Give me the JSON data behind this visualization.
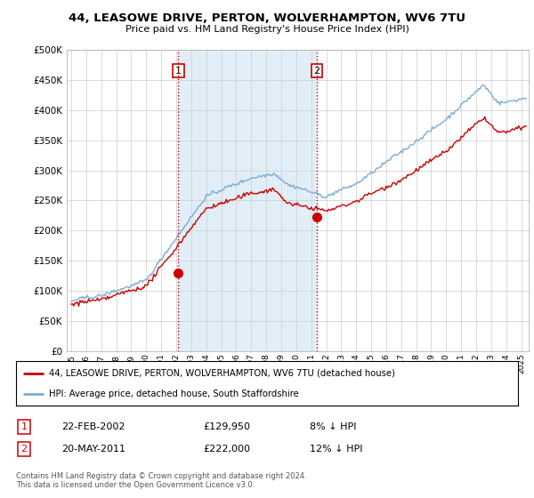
{
  "title": "44, LEASOWE DRIVE, PERTON, WOLVERHAMPTON, WV6 7TU",
  "subtitle": "Price paid vs. HM Land Registry's House Price Index (HPI)",
  "legend_line1": "44, LEASOWE DRIVE, PERTON, WOLVERHAMPTON, WV6 7TU (detached house)",
  "legend_line2": "HPI: Average price, detached house, South Staffordshire",
  "transaction1_date": "22-FEB-2002",
  "transaction1_price": "£129,950",
  "transaction1_hpi": "8% ↓ HPI",
  "transaction2_date": "20-MAY-2011",
  "transaction2_price": "£222,000",
  "transaction2_hpi": "12% ↓ HPI",
  "footnote": "Contains HM Land Registry data © Crown copyright and database right 2024.\nThis data is licensed under the Open Government Licence v3.0.",
  "vline1_date": 2002.14,
  "vline2_date": 2011.38,
  "marker1_x": 2002.14,
  "marker1_y": 129950,
  "marker2_x": 2011.38,
  "marker2_y": 222000,
  "price_color": "#cc0000",
  "hpi_color": "#7aadd4",
  "vline_color": "#cc0000",
  "shade_color": "#d6e8f5",
  "background_color": "#ffffff",
  "plot_bg_color": "#ffffff",
  "ylim": [
    0,
    500000
  ],
  "xlim_start": 1994.7,
  "xlim_end": 2025.5
}
